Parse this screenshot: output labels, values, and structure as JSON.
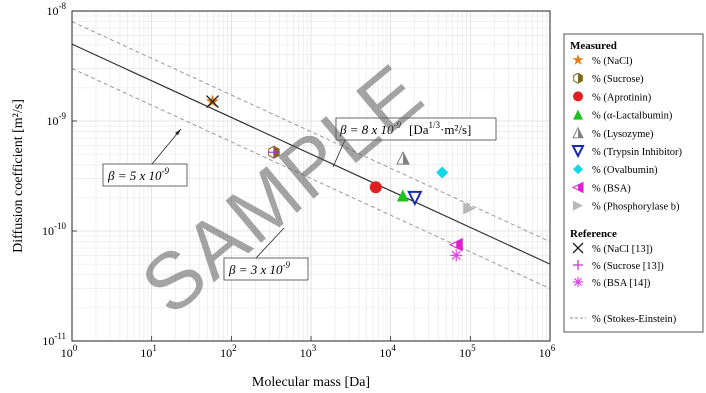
{
  "chart_data": {
    "type": "scatter",
    "xlabel": "Molecular mass [Da]",
    "ylabel": "Diffusion coefficient [m²/s]",
    "xscale": "log",
    "yscale": "log",
    "xlim": [
      1,
      1000000
    ],
    "ylim": [
      1e-11,
      1e-08
    ],
    "grid": true,
    "legend_position": "right",
    "x_ticks": [
      {
        "value": 1,
        "base": "10",
        "exp": "0"
      },
      {
        "value": 10,
        "base": "10",
        "exp": "1"
      },
      {
        "value": 100,
        "base": "10",
        "exp": "2"
      },
      {
        "value": 1000,
        "base": "10",
        "exp": "3"
      },
      {
        "value": 10000,
        "base": "10",
        "exp": "4"
      },
      {
        "value": 100000,
        "base": "10",
        "exp": "5"
      },
      {
        "value": 1000000,
        "base": "10",
        "exp": "6"
      }
    ],
    "y_ticks": [
      {
        "value": 1e-11,
        "base": "10",
        "exp": "-11"
      },
      {
        "value": 1e-10,
        "base": "10",
        "exp": "-10"
      },
      {
        "value": 1e-09,
        "base": "10",
        "exp": "-9"
      },
      {
        "value": 1e-08,
        "base": "10",
        "exp": "-8"
      }
    ],
    "lines": [
      {
        "id": "beta5",
        "beta": 5e-09,
        "style": "solid",
        "color": "#333333"
      },
      {
        "id": "beta8",
        "beta": 8e-09,
        "style": "dashed",
        "color": "#999999"
      },
      {
        "id": "beta3",
        "beta": 3e-09,
        "style": "dashed",
        "color": "#999999"
      }
    ],
    "measured": [
      {
        "name": "% (NaCl)",
        "marker": "star",
        "color": "#E07B1A",
        "points": [
          [
            58,
            1.5e-09
          ]
        ]
      },
      {
        "name": "% (Sucrose)",
        "marker": "hexhalf",
        "color": "#7A6A18",
        "points": [
          [
            342,
            5.2e-10
          ]
        ]
      },
      {
        "name": "% (Aprotinin)",
        "marker": "circle",
        "color": "#E02020",
        "points": [
          [
            6500,
            2.5e-10
          ]
        ]
      },
      {
        "name": "% (α-Lactalbumin)",
        "marker": "triangle-up",
        "color": "#20C020",
        "points": [
          [
            14200,
            2.1e-10
          ]
        ]
      },
      {
        "name": "% (Lysozyme)",
        "marker": "triangle-up-half",
        "color": "#808080",
        "points": [
          [
            14300,
            4.6e-10
          ]
        ]
      },
      {
        "name": "% (Trypsin Inhibitor)",
        "marker": "triangle-down",
        "color": "#1A2AB0",
        "points": [
          [
            20100,
            2e-10
          ]
        ]
      },
      {
        "name": "% (Ovalbumin)",
        "marker": "diamond",
        "color": "#10D8E8",
        "points": [
          [
            44300,
            3.4e-10
          ]
        ]
      },
      {
        "name": "% (BSA)",
        "marker": "triangle-left",
        "color": "#E020D0",
        "points": [
          [
            66500,
            7.5e-11
          ]
        ]
      },
      {
        "name": "% (Phosphorylase b)",
        "marker": "triangle-right",
        "color": "#B8B8B8",
        "points": [
          [
            97000,
            1.6e-10
          ]
        ]
      }
    ],
    "reference": [
      {
        "name": "% (NaCl [13])",
        "marker": "x",
        "color": "#222222",
        "points": [
          [
            58,
            1.5e-09
          ]
        ]
      },
      {
        "name": "% (Sucrose [13])",
        "marker": "plus",
        "color": "#C030C0",
        "points": [
          [
            342,
            5.2e-10
          ]
        ]
      },
      {
        "name": "% (BSA [14])",
        "marker": "asterisk",
        "color": "#E040E0",
        "points": [
          [
            66500,
            6e-11
          ]
        ]
      }
    ],
    "stokes_einstein_legend": "% (Stokes-Einstein)"
  },
  "annotations": {
    "beta5": "β = 5 x 10",
    "beta5_exp": "-9",
    "beta8_pre": "β = 8 x 10",
    "beta8_exp": "-9",
    "beta8_unit_pre": "[Da",
    "beta8_unit_exp": "1/3",
    "beta8_unit_post": "·m²/s]",
    "beta3": "β = 3 x 10",
    "beta3_exp": "-9"
  },
  "legend": {
    "measured_title": "Measured",
    "reference_title": "Reference"
  },
  "watermark": "SAMPLE"
}
